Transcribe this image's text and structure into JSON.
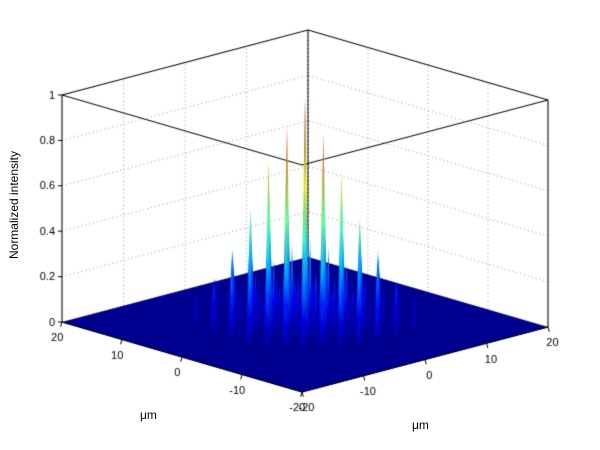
{
  "figure": {
    "background": "#ffffff",
    "box_color": "#000000",
    "grid_color": "#999999",
    "floor_color": "#000090"
  },
  "chart_data": {
    "type": "heatmap",
    "projection": "3d-spike-surface",
    "title": "",
    "xlabel": "μm",
    "ylabel": "μm",
    "zlabel": "Normalized intensity",
    "colormap": "jet",
    "grid": true,
    "x_range": [
      -20,
      20
    ],
    "y_range": [
      -20,
      20
    ],
    "z_range": [
      0,
      1
    ],
    "x_ticks": [
      -20,
      -10,
      0,
      10,
      20
    ],
    "y_ticks": [
      -20,
      -10,
      0,
      10,
      20
    ],
    "z_ticks": [
      0,
      0.2,
      0.4,
      0.6,
      0.8,
      1
    ],
    "x": [
      -12,
      -9,
      -6,
      -3,
      0,
      3,
      6,
      9,
      12
    ],
    "y": [
      -12,
      -9,
      -6,
      -3,
      0,
      3,
      6,
      9,
      12
    ],
    "values": [
      [
        0.03,
        0.06,
        0.1,
        0.14,
        0.16,
        0.12,
        0.09,
        0.05,
        0.03
      ],
      [
        0.05,
        0.12,
        0.2,
        0.3,
        0.33,
        0.28,
        0.18,
        0.1,
        0.06
      ],
      [
        0.09,
        0.19,
        0.35,
        0.5,
        0.55,
        0.48,
        0.33,
        0.17,
        0.08
      ],
      [
        0.13,
        0.28,
        0.48,
        0.7,
        0.78,
        0.68,
        0.45,
        0.26,
        0.12
      ],
      [
        0.15,
        0.32,
        0.55,
        0.8,
        1.0,
        0.82,
        0.52,
        0.3,
        0.14
      ],
      [
        0.12,
        0.27,
        0.47,
        0.72,
        0.85,
        0.7,
        0.46,
        0.25,
        0.11
      ],
      [
        0.08,
        0.18,
        0.32,
        0.49,
        0.56,
        0.47,
        0.3,
        0.16,
        0.07
      ],
      [
        0.05,
        0.11,
        0.17,
        0.28,
        0.31,
        0.26,
        0.15,
        0.09,
        0.04
      ],
      [
        0.02,
        0.05,
        0.08,
        0.13,
        0.15,
        0.11,
        0.07,
        0.04,
        0.02
      ]
    ]
  }
}
